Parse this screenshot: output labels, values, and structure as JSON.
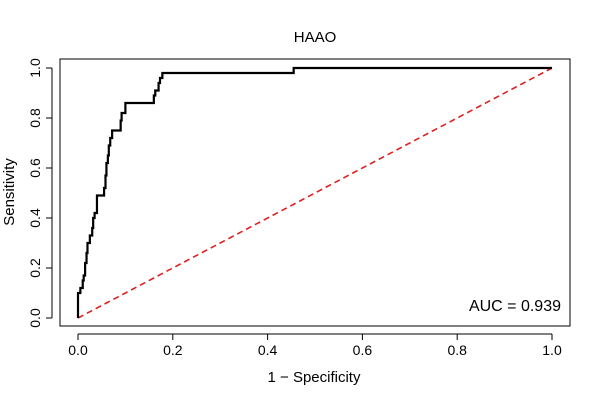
{
  "chart_data": {
    "type": "line",
    "title": "HAAO",
    "xlabel": "1 − Specificity",
    "ylabel": "Sensitivity",
    "xlim": [
      0.0,
      1.0
    ],
    "ylim": [
      0.0,
      1.0
    ],
    "xticks": [
      "0.0",
      "0.2",
      "0.4",
      "0.6",
      "0.8",
      "1.0"
    ],
    "yticks": [
      "0.0",
      "0.2",
      "0.4",
      "0.6",
      "0.8",
      "1.0"
    ],
    "grid": false,
    "annotation": "AUC = 0.939",
    "colors": {
      "roc": "#000000",
      "reference": "#e02020"
    },
    "series": [
      {
        "style": "step",
        "points": [
          [
            0.0,
            0.0
          ],
          [
            0.0,
            0.03
          ],
          [
            0.0,
            0.1
          ],
          [
            0.005,
            0.1
          ],
          [
            0.005,
            0.12
          ],
          [
            0.01,
            0.12
          ],
          [
            0.01,
            0.15
          ],
          [
            0.012,
            0.15
          ],
          [
            0.012,
            0.17
          ],
          [
            0.015,
            0.17
          ],
          [
            0.015,
            0.22
          ],
          [
            0.018,
            0.22
          ],
          [
            0.018,
            0.26
          ],
          [
            0.02,
            0.26
          ],
          [
            0.02,
            0.3
          ],
          [
            0.025,
            0.3
          ],
          [
            0.025,
            0.33
          ],
          [
            0.03,
            0.33
          ],
          [
            0.03,
            0.36
          ],
          [
            0.032,
            0.36
          ],
          [
            0.032,
            0.4
          ],
          [
            0.035,
            0.4
          ],
          [
            0.035,
            0.42
          ],
          [
            0.04,
            0.42
          ],
          [
            0.04,
            0.45
          ],
          [
            0.04,
            0.49
          ],
          [
            0.055,
            0.49
          ],
          [
            0.055,
            0.52
          ],
          [
            0.058,
            0.52
          ],
          [
            0.058,
            0.57
          ],
          [
            0.06,
            0.57
          ],
          [
            0.06,
            0.62
          ],
          [
            0.063,
            0.62
          ],
          [
            0.063,
            0.65
          ],
          [
            0.065,
            0.65
          ],
          [
            0.065,
            0.69
          ],
          [
            0.068,
            0.69
          ],
          [
            0.068,
            0.72
          ],
          [
            0.072,
            0.72
          ],
          [
            0.072,
            0.75
          ],
          [
            0.09,
            0.75
          ],
          [
            0.09,
            0.79
          ],
          [
            0.092,
            0.79
          ],
          [
            0.092,
            0.82
          ],
          [
            0.1,
            0.82
          ],
          [
            0.1,
            0.86
          ],
          [
            0.16,
            0.86
          ],
          [
            0.16,
            0.89
          ],
          [
            0.163,
            0.89
          ],
          [
            0.163,
            0.91
          ],
          [
            0.17,
            0.91
          ],
          [
            0.17,
            0.94
          ],
          [
            0.173,
            0.94
          ],
          [
            0.173,
            0.96
          ],
          [
            0.178,
            0.96
          ],
          [
            0.178,
            0.98
          ],
          [
            0.455,
            0.98
          ],
          [
            0.455,
            1.0
          ],
          [
            1.0,
            1.0
          ]
        ]
      },
      {
        "style": "dashed",
        "points": [
          [
            0.0,
            0.0
          ],
          [
            1.0,
            1.0
          ]
        ]
      }
    ]
  }
}
